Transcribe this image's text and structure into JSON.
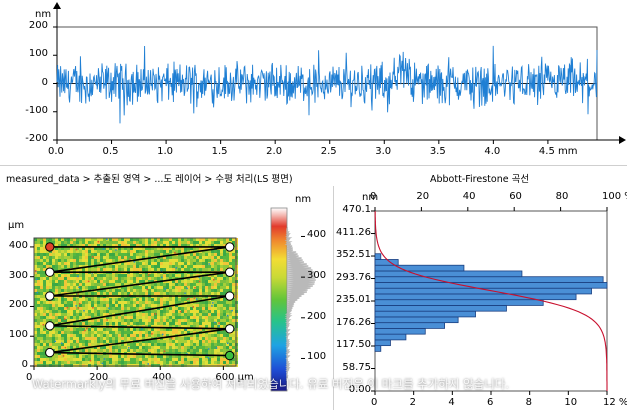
{
  "profile": {
    "unit_y": "nm",
    "unit_x": "mm",
    "y_ticks": [
      "200",
      "100",
      "0",
      "-100",
      "-200"
    ],
    "x_ticks": [
      "0.0",
      "0.5",
      "1.0",
      "1.5",
      "2.0",
      "2.5",
      "3.0",
      "3.5",
      "4.0",
      "4.5 mm"
    ],
    "line_color": "#1f7fd4"
  },
  "breadcrumb": "measured_data > 추출된 영역 > ...도 레이어 > 수평 처리(LS 평면)",
  "map": {
    "unit_y": "µm",
    "y_ticks": [
      "400",
      "300",
      "200",
      "100",
      "0"
    ],
    "x_ticks": [
      "0",
      "200",
      "400",
      "600 µm"
    ]
  },
  "colorbar": {
    "unit": "nm",
    "ticks": [
      "400",
      "300",
      "200",
      "100"
    ]
  },
  "abbott": {
    "title": "Abbott-Firestone 곡선",
    "unit_left": "nm",
    "left_ticks": [
      "470.1",
      "411.26",
      "352.51",
      "293.76",
      "235.01",
      "176.26",
      "117.50",
      "58.75",
      "0.00"
    ],
    "top_ticks": [
      "0",
      "20",
      "40",
      "60",
      "80",
      "100 %"
    ],
    "bottom_ticks": [
      "0",
      "2",
      "4",
      "6",
      "8",
      "10",
      "12 %"
    ]
  },
  "watermark": "Watermarkly의 무료 버전을 사용하여 처리되었습니다. 유료 버전은 이 마크를 추가하지 않습니다.",
  "chart_data": [
    {
      "type": "line",
      "title": "",
      "xlabel": "mm",
      "ylabel": "nm",
      "xlim": [
        0,
        4.95
      ],
      "ylim": [
        -200,
        200
      ],
      "grid": false,
      "series": [
        {
          "values_summary": "surface roughness profile oscillating about 0 nm, amplitude mostly within ±100 nm, occasional peaks near 140 nm at x≈3.1 mm"
        }
      ]
    },
    {
      "type": "bar",
      "title": "Abbott-Firestone 곡선",
      "ylabel": "nm",
      "xlabel": "%",
      "ylim": [
        0,
        470.1
      ],
      "xlim_bottom": [
        0,
        12
      ],
      "xlim_top": [
        0,
        100
      ],
      "categories": [
        "111",
        "126",
        "141",
        "156",
        "171",
        "186",
        "201",
        "216",
        "231",
        "246",
        "261",
        "276",
        "291",
        "306",
        "321",
        "336",
        "351"
      ],
      "values": [
        0.3,
        0.8,
        1.6,
        2.6,
        3.6,
        4.3,
        5.2,
        6.8,
        8.7,
        10.4,
        11.2,
        12.0,
        11.8,
        7.6,
        4.6,
        1.2,
        0.3
      ],
      "series": [
        {
          "name": "histogram",
          "values": [
            0.3,
            0.8,
            1.6,
            2.6,
            3.6,
            4.3,
            5.2,
            6.8,
            8.7,
            10.4,
            11.2,
            12.0,
            11.8,
            7.6,
            4.6,
            1.2,
            0.3
          ]
        }
      ]
    }
  ]
}
